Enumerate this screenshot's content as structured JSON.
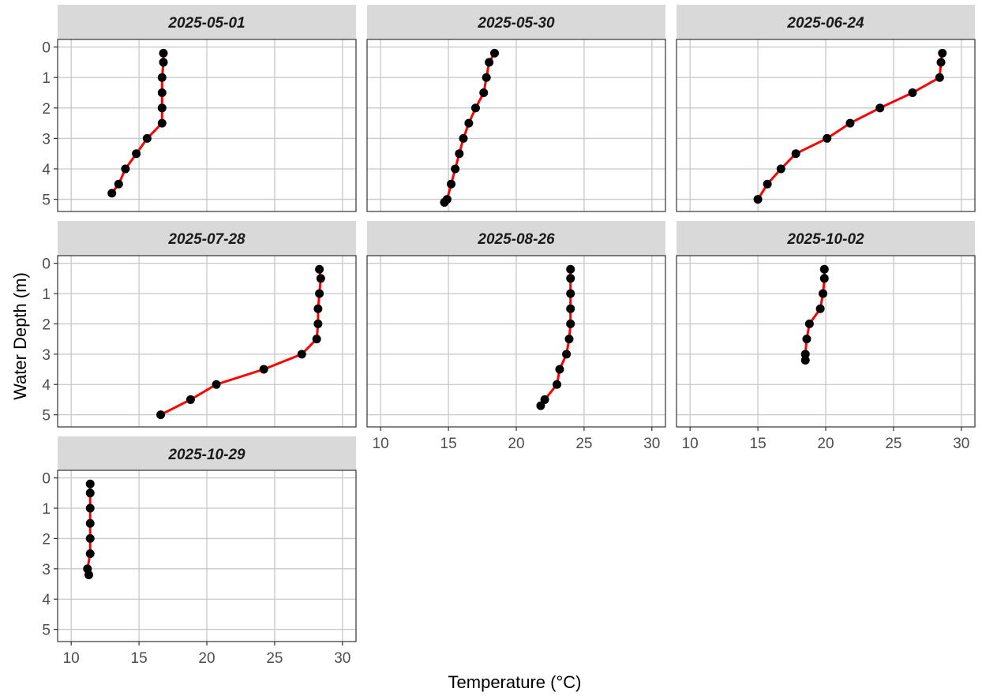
{
  "chart_data": {
    "type": "line",
    "xlabel": "Temperature (°C)",
    "ylabel": "Water Depth (m)",
    "xlim": [
      9,
      31
    ],
    "ylim": [
      5.4,
      -0.25
    ],
    "y_reversed": true,
    "xticks": [
      10,
      15,
      20,
      25,
      30
    ],
    "yticks": [
      0,
      1,
      2,
      3,
      4,
      5
    ],
    "grid": true,
    "line_color": "#ff0000",
    "point_color": "#000000",
    "strip_fill": "#d9d9d9",
    "panels": [
      {
        "title": "2025-05-01",
        "depth": [
          0.2,
          0.5,
          1.0,
          1.5,
          2.0,
          2.5,
          3.0,
          3.5,
          4.0,
          4.5,
          4.8
        ],
        "temperature": [
          16.8,
          16.8,
          16.7,
          16.7,
          16.7,
          16.7,
          15.6,
          14.8,
          14.0,
          13.5,
          13.0
        ]
      },
      {
        "title": "2025-05-30",
        "depth": [
          0.2,
          0.5,
          1.0,
          1.5,
          2.0,
          2.5,
          3.0,
          3.5,
          4.0,
          4.5,
          5.0,
          5.1
        ],
        "temperature": [
          18.4,
          18.0,
          17.8,
          17.6,
          17.0,
          16.5,
          16.1,
          15.8,
          15.5,
          15.2,
          14.9,
          14.7
        ]
      },
      {
        "title": "2025-06-24",
        "depth": [
          0.2,
          0.5,
          1.0,
          1.5,
          2.0,
          2.5,
          3.0,
          3.5,
          4.0,
          4.5,
          5.0
        ],
        "temperature": [
          28.6,
          28.5,
          28.4,
          26.4,
          24.0,
          21.8,
          20.1,
          17.8,
          16.7,
          15.7,
          15.0
        ]
      },
      {
        "title": "2025-07-28",
        "depth": [
          0.2,
          0.5,
          1.0,
          1.5,
          2.0,
          2.5,
          3.0,
          3.5,
          4.0,
          4.5,
          5.0
        ],
        "temperature": [
          28.3,
          28.4,
          28.3,
          28.2,
          28.2,
          28.1,
          27.0,
          24.2,
          20.7,
          18.8,
          16.6
        ]
      },
      {
        "title": "2025-08-26",
        "depth": [
          0.2,
          0.5,
          1.0,
          1.5,
          2.0,
          2.5,
          3.0,
          3.5,
          4.0,
          4.5,
          4.7
        ],
        "temperature": [
          24.0,
          24.0,
          24.0,
          24.0,
          24.0,
          23.9,
          23.7,
          23.2,
          23.0,
          22.1,
          21.8
        ]
      },
      {
        "title": "2025-10-02",
        "depth": [
          0.2,
          0.5,
          1.0,
          1.5,
          2.0,
          2.5,
          3.0,
          3.2
        ],
        "temperature": [
          19.9,
          19.9,
          19.8,
          19.6,
          18.8,
          18.6,
          18.5,
          18.5
        ]
      },
      {
        "title": "2025-10-29",
        "depth": [
          0.2,
          0.5,
          1.0,
          1.5,
          2.0,
          2.5,
          3.0,
          3.2
        ],
        "temperature": [
          11.4,
          11.4,
          11.4,
          11.4,
          11.4,
          11.4,
          11.2,
          11.3
        ]
      }
    ]
  }
}
